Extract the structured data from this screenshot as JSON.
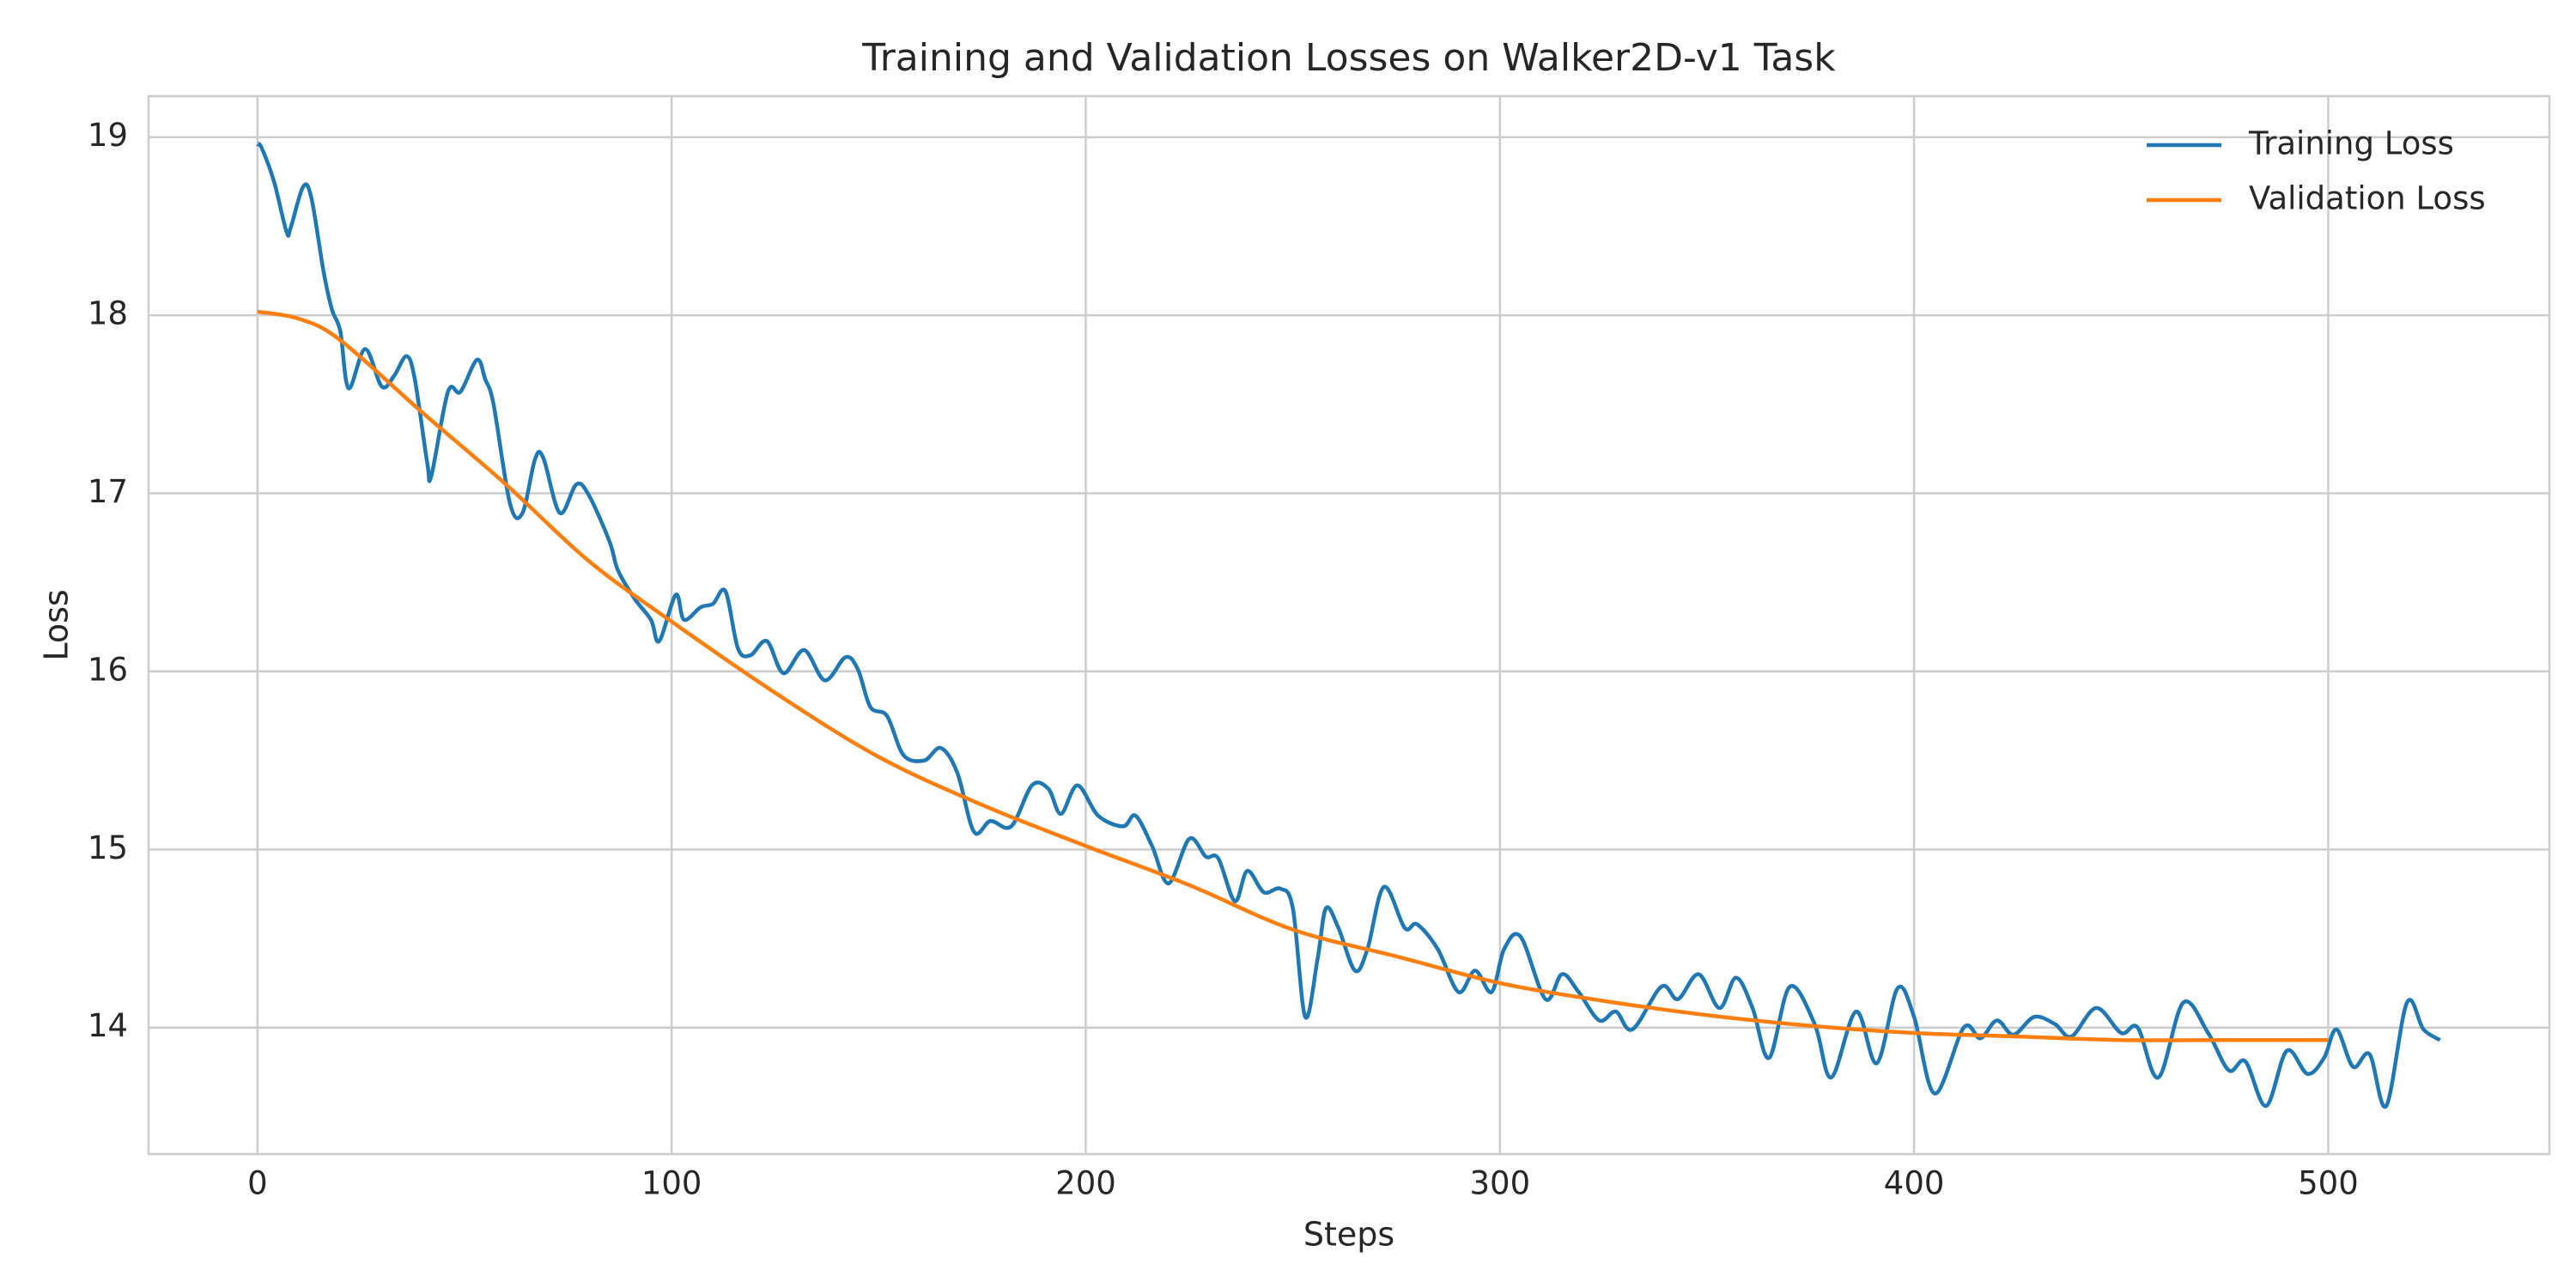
{
  "chart_data": {
    "type": "line",
    "title": "Training and Validation Losses on Walker2D-v1 Task",
    "xlabel": "Steps",
    "ylabel": "Loss",
    "xlim": [
      -26.3,
      553.4
    ],
    "ylim": [
      13.29,
      19.23
    ],
    "xticks": [
      0,
      100,
      200,
      300,
      400,
      500
    ],
    "yticks": [
      14,
      15,
      16,
      17,
      18,
      19
    ],
    "grid": true,
    "legend": "upper right",
    "series": [
      {
        "name": "Training Loss",
        "color": "#1f77b4",
        "x": [
          0,
          1,
          4,
          7,
          8,
          11,
          13,
          16,
          18,
          20,
          22,
          26,
          30,
          33,
          36,
          38,
          41,
          42,
          46,
          49,
          53,
          55,
          57,
          61,
          64,
          67,
          69,
          73,
          77,
          80,
          85,
          87,
          91,
          95,
          97,
          101,
          103,
          107,
          110,
          113,
          116,
          119,
          123,
          127,
          132,
          137,
          142,
          145,
          148,
          152,
          156,
          161,
          165,
          169,
          173,
          177,
          182,
          187,
          191,
          194,
          198,
          203,
          209,
          212,
          216,
          220,
          225,
          229,
          232,
          236,
          239,
          243,
          247,
          250,
          253,
          256,
          258,
          261,
          265,
          268,
          272,
          277,
          280,
          285,
          290,
          294,
          298,
          301,
          305,
          311,
          315,
          319,
          324,
          328,
          332,
          339,
          343,
          348,
          353,
          357,
          361,
          365,
          370,
          376,
          380,
          386,
          391,
          396,
          400,
          405,
          412,
          416,
          420,
          424,
          429,
          434,
          438,
          444,
          450,
          454,
          459,
          465,
          471,
          476,
          480,
          485,
          490,
          495,
          499,
          502,
          506,
          510,
          514,
          519,
          523,
          527
        ],
        "values": [
          18.96,
          18.94,
          18.75,
          18.47,
          18.49,
          18.72,
          18.66,
          18.24,
          18.03,
          17.91,
          17.59,
          17.81,
          17.6,
          17.66,
          17.77,
          17.64,
          17.17,
          17.1,
          17.57,
          17.57,
          17.75,
          17.64,
          17.5,
          16.94,
          16.89,
          17.19,
          17.2,
          16.89,
          17.05,
          16.99,
          16.73,
          16.57,
          16.41,
          16.29,
          16.17,
          16.43,
          16.29,
          16.36,
          16.38,
          16.45,
          16.13,
          16.09,
          16.17,
          15.99,
          16.12,
          15.95,
          16.08,
          16.01,
          15.8,
          15.75,
          15.53,
          15.5,
          15.57,
          15.43,
          15.1,
          15.16,
          15.13,
          15.36,
          15.34,
          15.2,
          15.36,
          15.19,
          15.13,
          15.19,
          15.02,
          14.81,
          15.06,
          14.96,
          14.95,
          14.71,
          14.88,
          14.76,
          14.78,
          14.67,
          14.06,
          14.39,
          14.67,
          14.56,
          14.32,
          14.44,
          14.79,
          14.56,
          14.58,
          14.44,
          14.2,
          14.32,
          14.2,
          14.44,
          14.51,
          14.16,
          14.3,
          14.2,
          14.04,
          14.09,
          13.99,
          14.23,
          14.16,
          14.3,
          14.11,
          14.28,
          14.11,
          13.83,
          14.23,
          14.02,
          13.72,
          14.09,
          13.8,
          14.22,
          14.06,
          13.63,
          14.0,
          13.94,
          14.04,
          13.96,
          14.06,
          14.02,
          13.95,
          14.11,
          13.97,
          14.0,
          13.72,
          14.14,
          13.97,
          13.76,
          13.81,
          13.56,
          13.87,
          13.74,
          13.83,
          13.99,
          13.78,
          13.85,
          13.56,
          14.14,
          13.99,
          13.93
        ]
      },
      {
        "name": "Validation Loss",
        "color": "#ff7f0e",
        "x": [
          0,
          10,
          20,
          40,
          60,
          80,
          100,
          125,
          150,
          175,
          200,
          225,
          250,
          275,
          300,
          325,
          350,
          375,
          400,
          425,
          450,
          475,
          500
        ],
        "values": [
          18.02,
          17.98,
          17.86,
          17.45,
          17.05,
          16.62,
          16.28,
          15.88,
          15.52,
          15.25,
          15.02,
          14.8,
          14.55,
          14.4,
          14.25,
          14.15,
          14.07,
          14.01,
          13.97,
          13.95,
          13.93,
          13.93,
          13.93
        ]
      }
    ]
  }
}
